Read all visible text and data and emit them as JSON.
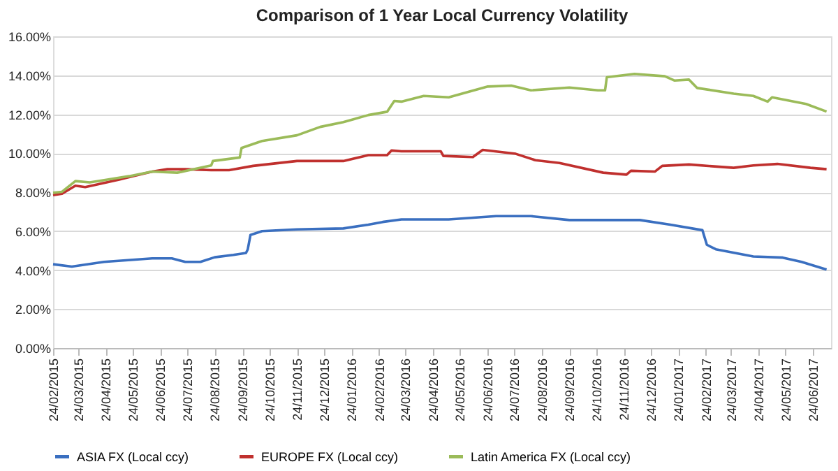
{
  "chart_data": {
    "type": "line",
    "title": "Comparison of 1 Year Local Currency Volatility",
    "xlim": [
      "2015-02-24",
      "2017-07-14"
    ],
    "xticks": [
      {
        "value": "2015-02-24",
        "label": "24/02/2015"
      },
      {
        "value": "2015-03-24",
        "label": "24/03/2015"
      },
      {
        "value": "2015-04-24",
        "label": "24/04/2015"
      },
      {
        "value": "2015-05-24",
        "label": "24/05/2015"
      },
      {
        "value": "2015-06-24",
        "label": "24/06/2015"
      },
      {
        "value": "2015-07-24",
        "label": "24/07/2015"
      },
      {
        "value": "2015-08-24",
        "label": "24/08/2015"
      },
      {
        "value": "2015-09-24",
        "label": "24/09/2015"
      },
      {
        "value": "2015-10-24",
        "label": "24/10/2015"
      },
      {
        "value": "2015-11-24",
        "label": "24/11/2015"
      },
      {
        "value": "2015-12-24",
        "label": "24/12/2015"
      },
      {
        "value": "2016-01-24",
        "label": "24/01/2016"
      },
      {
        "value": "2016-02-24",
        "label": "24/02/2016"
      },
      {
        "value": "2016-03-24",
        "label": "24/03/2016"
      },
      {
        "value": "2016-04-24",
        "label": "24/04/2016"
      },
      {
        "value": "2016-05-24",
        "label": "24/05/2016"
      },
      {
        "value": "2016-06-24",
        "label": "24/06/2016"
      },
      {
        "value": "2016-07-24",
        "label": "24/07/2016"
      },
      {
        "value": "2016-08-24",
        "label": "24/08/2016"
      },
      {
        "value": "2016-09-24",
        "label": "24/09/2016"
      },
      {
        "value": "2016-10-24",
        "label": "24/10/2016"
      },
      {
        "value": "2016-11-24",
        "label": "24/11/2016"
      },
      {
        "value": "2016-12-24",
        "label": "24/12/2016"
      },
      {
        "value": "2017-01-24",
        "label": "24/01/2017"
      },
      {
        "value": "2017-02-24",
        "label": "24/02/2017"
      },
      {
        "value": "2017-03-24",
        "label": "24/03/2017"
      },
      {
        "value": "2017-04-24",
        "label": "24/04/2017"
      },
      {
        "value": "2017-05-24",
        "label": "24/05/2017"
      },
      {
        "value": "2017-06-24",
        "label": "24/06/2017"
      }
    ],
    "ylim": [
      0,
      16
    ],
    "yticks": [
      {
        "value": 0,
        "label": "0.00%"
      },
      {
        "value": 2,
        "label": "2.00%"
      },
      {
        "value": 4,
        "label": "4.00%"
      },
      {
        "value": 6,
        "label": "6.00%"
      },
      {
        "value": 8,
        "label": "8.00%"
      },
      {
        "value": 10,
        "label": "10.00%"
      },
      {
        "value": 12,
        "label": "12.00%"
      },
      {
        "value": 14,
        "label": "14.00%"
      },
      {
        "value": 16,
        "label": "16.00%"
      }
    ],
    "grid": "y",
    "legend": "bottom",
    "marker": "none",
    "line_style": "solid",
    "series": [
      {
        "name": "ASIA FX (Local ccy)",
        "color": "#3a6fc0",
        "x": [
          "2015-02-24",
          "2015-03-17",
          "2015-04-22",
          "2015-06-15",
          "2015-07-07",
          "2015-07-22",
          "2015-08-08",
          "2015-08-24",
          "2015-09-14",
          "2015-09-28",
          "2015-09-30",
          "2015-10-03",
          "2015-10-16",
          "2015-11-24",
          "2016-01-15",
          "2016-02-12",
          "2016-02-28",
          "2016-03-20",
          "2016-05-12",
          "2016-07-04",
          "2016-08-12",
          "2016-09-24",
          "2016-12-12",
          "2017-01-15",
          "2017-02-20",
          "2017-02-25",
          "2017-03-07",
          "2017-04-18",
          "2017-05-21",
          "2017-06-11",
          "2017-07-09"
        ],
        "values": [
          4.3,
          4.18,
          4.42,
          4.6,
          4.6,
          4.42,
          4.42,
          4.66,
          4.78,
          4.88,
          5.07,
          5.8,
          6.0,
          6.09,
          6.14,
          6.33,
          6.47,
          6.6,
          6.6,
          6.77,
          6.77,
          6.57,
          6.57,
          6.33,
          6.05,
          5.3,
          5.07,
          4.7,
          4.64,
          4.42,
          4.03
        ]
      },
      {
        "name": "EUROPE FX (Local ccy)",
        "color": "#c0302e",
        "x": [
          "2015-02-24",
          "2015-03-06",
          "2015-03-21",
          "2015-04-01",
          "2015-05-09",
          "2015-06-15",
          "2015-07-02",
          "2015-07-22",
          "2015-08-20",
          "2015-09-09",
          "2015-10-06",
          "2015-11-24",
          "2016-01-15",
          "2016-02-12",
          "2016-03-04",
          "2016-03-09",
          "2016-03-20",
          "2016-05-03",
          "2016-05-06",
          "2016-06-08",
          "2016-06-19",
          "2016-07-26",
          "2016-08-17",
          "2016-09-13",
          "2016-11-01",
          "2016-11-27",
          "2016-12-02",
          "2016-12-29",
          "2017-01-06",
          "2017-02-05",
          "2017-03-27",
          "2017-04-18",
          "2017-05-15",
          "2017-06-21",
          "2017-07-09"
        ],
        "values": [
          7.85,
          7.92,
          8.33,
          8.26,
          8.65,
          9.06,
          9.18,
          9.18,
          9.13,
          9.13,
          9.35,
          9.6,
          9.6,
          9.9,
          9.9,
          10.14,
          10.1,
          10.1,
          9.86,
          9.8,
          10.17,
          9.97,
          9.64,
          9.5,
          9.0,
          8.9,
          9.1,
          9.06,
          9.35,
          9.42,
          9.25,
          9.37,
          9.45,
          9.25,
          9.18
        ]
      },
      {
        "name": "Latin America FX (Local ccy)",
        "color": "#9bbb59",
        "x": [
          "2015-02-24",
          "2015-03-06",
          "2015-03-21",
          "2015-04-06",
          "2015-05-20",
          "2015-06-15",
          "2015-07-13",
          "2015-08-20",
          "2015-08-22",
          "2015-09-21",
          "2015-09-23",
          "2015-10-16",
          "2015-11-24",
          "2015-12-20",
          "2016-01-15",
          "2016-02-12",
          "2016-03-04",
          "2016-03-12",
          "2016-03-20",
          "2016-04-14",
          "2016-05-12",
          "2016-06-24",
          "2016-07-21",
          "2016-08-12",
          "2016-09-24",
          "2016-10-26",
          "2016-11-03",
          "2016-11-05",
          "2016-12-06",
          "2017-01-09",
          "2017-01-20",
          "2017-02-05",
          "2017-02-14",
          "2017-03-27",
          "2017-04-18",
          "2017-05-04",
          "2017-05-09",
          "2017-06-16",
          "2017-07-09"
        ],
        "values": [
          7.97,
          8.02,
          8.57,
          8.5,
          8.82,
          9.06,
          9.0,
          9.37,
          9.6,
          9.78,
          10.27,
          10.63,
          10.92,
          11.35,
          11.6,
          11.96,
          12.13,
          12.68,
          12.65,
          12.94,
          12.87,
          13.42,
          13.47,
          13.23,
          13.37,
          13.23,
          13.23,
          13.9,
          14.07,
          13.95,
          13.73,
          13.78,
          13.35,
          13.06,
          12.94,
          12.65,
          12.87,
          12.53,
          12.14
        ]
      }
    ]
  }
}
